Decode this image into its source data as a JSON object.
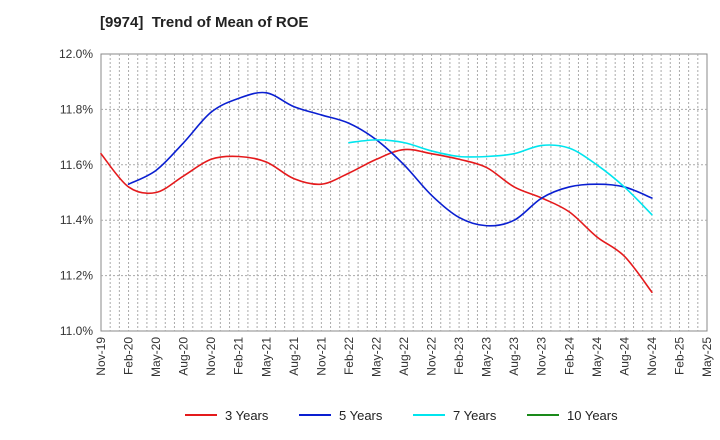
{
  "chart_data": {
    "type": "line",
    "title": "[9974]  Trend of Mean of ROE",
    "xlabel": "",
    "ylabel": "",
    "ylim": [
      11.0,
      12.0
    ],
    "y_ticks": [
      "11.0%",
      "11.2%",
      "11.4%",
      "11.6%",
      "11.8%",
      "12.0%"
    ],
    "y_tick_values": [
      11.0,
      11.2,
      11.4,
      11.6,
      11.8,
      12.0
    ],
    "x_ticks": [
      "Nov-19",
      "Feb-20",
      "May-20",
      "Aug-20",
      "Nov-20",
      "Feb-21",
      "May-21",
      "Aug-21",
      "Nov-21",
      "Feb-22",
      "May-22",
      "Aug-22",
      "Nov-22",
      "Feb-23",
      "May-23",
      "Aug-23",
      "Nov-23",
      "Feb-24",
      "May-24",
      "Aug-24",
      "Nov-24",
      "Feb-25",
      "May-25"
    ],
    "grid": true,
    "legend_position": "bottom",
    "series": [
      {
        "name": "3 Years",
        "color": "#e41a1c",
        "points": [
          [
            "Nov-19",
            11.64
          ],
          [
            "Feb-20",
            11.52
          ],
          [
            "May-20",
            11.5
          ],
          [
            "Aug-20",
            11.56
          ],
          [
            "Nov-20",
            11.62
          ],
          [
            "Feb-21",
            11.63
          ],
          [
            "May-21",
            11.61
          ],
          [
            "Aug-21",
            11.55
          ],
          [
            "Nov-21",
            11.53
          ],
          [
            "Feb-22",
            11.57
          ],
          [
            "May-22",
            11.62
          ],
          [
            "Aug-22",
            11.655
          ],
          [
            "Nov-22",
            11.64
          ],
          [
            "Feb-23",
            11.62
          ],
          [
            "May-23",
            11.59
          ],
          [
            "Aug-23",
            11.52
          ],
          [
            "Nov-23",
            11.48
          ],
          [
            "Feb-24",
            11.43
          ],
          [
            "May-24",
            11.34
          ],
          [
            "Aug-24",
            11.27
          ],
          [
            "Nov-24",
            11.14
          ]
        ]
      },
      {
        "name": "5 Years",
        "color": "#0a1fd1",
        "points": [
          [
            "Feb-20",
            11.53
          ],
          [
            "May-20",
            11.58
          ],
          [
            "Aug-20",
            11.68
          ],
          [
            "Nov-20",
            11.79
          ],
          [
            "Feb-21",
            11.84
          ],
          [
            "May-21",
            11.86
          ],
          [
            "Aug-21",
            11.81
          ],
          [
            "Nov-21",
            11.78
          ],
          [
            "Feb-22",
            11.75
          ],
          [
            "May-22",
            11.69
          ],
          [
            "Aug-22",
            11.6
          ],
          [
            "Nov-22",
            11.49
          ],
          [
            "Feb-23",
            11.41
          ],
          [
            "May-23",
            11.38
          ],
          [
            "Aug-23",
            11.4
          ],
          [
            "Nov-23",
            11.48
          ],
          [
            "Feb-24",
            11.52
          ],
          [
            "May-24",
            11.53
          ],
          [
            "Aug-24",
            11.52
          ],
          [
            "Nov-24",
            11.48
          ]
        ]
      },
      {
        "name": "7 Years",
        "color": "#00e5ee",
        "points": [
          [
            "Feb-22",
            11.68
          ],
          [
            "May-22",
            11.69
          ],
          [
            "Aug-22",
            11.68
          ],
          [
            "Nov-22",
            11.65
          ],
          [
            "Feb-23",
            11.63
          ],
          [
            "May-23",
            11.63
          ],
          [
            "Aug-23",
            11.64
          ],
          [
            "Nov-23",
            11.67
          ],
          [
            "Feb-24",
            11.66
          ],
          [
            "May-24",
            11.6
          ],
          [
            "Aug-24",
            11.52
          ],
          [
            "Nov-24",
            11.42
          ]
        ]
      },
      {
        "name": "10 Years",
        "color": "#1a8a1a",
        "points": []
      }
    ]
  }
}
